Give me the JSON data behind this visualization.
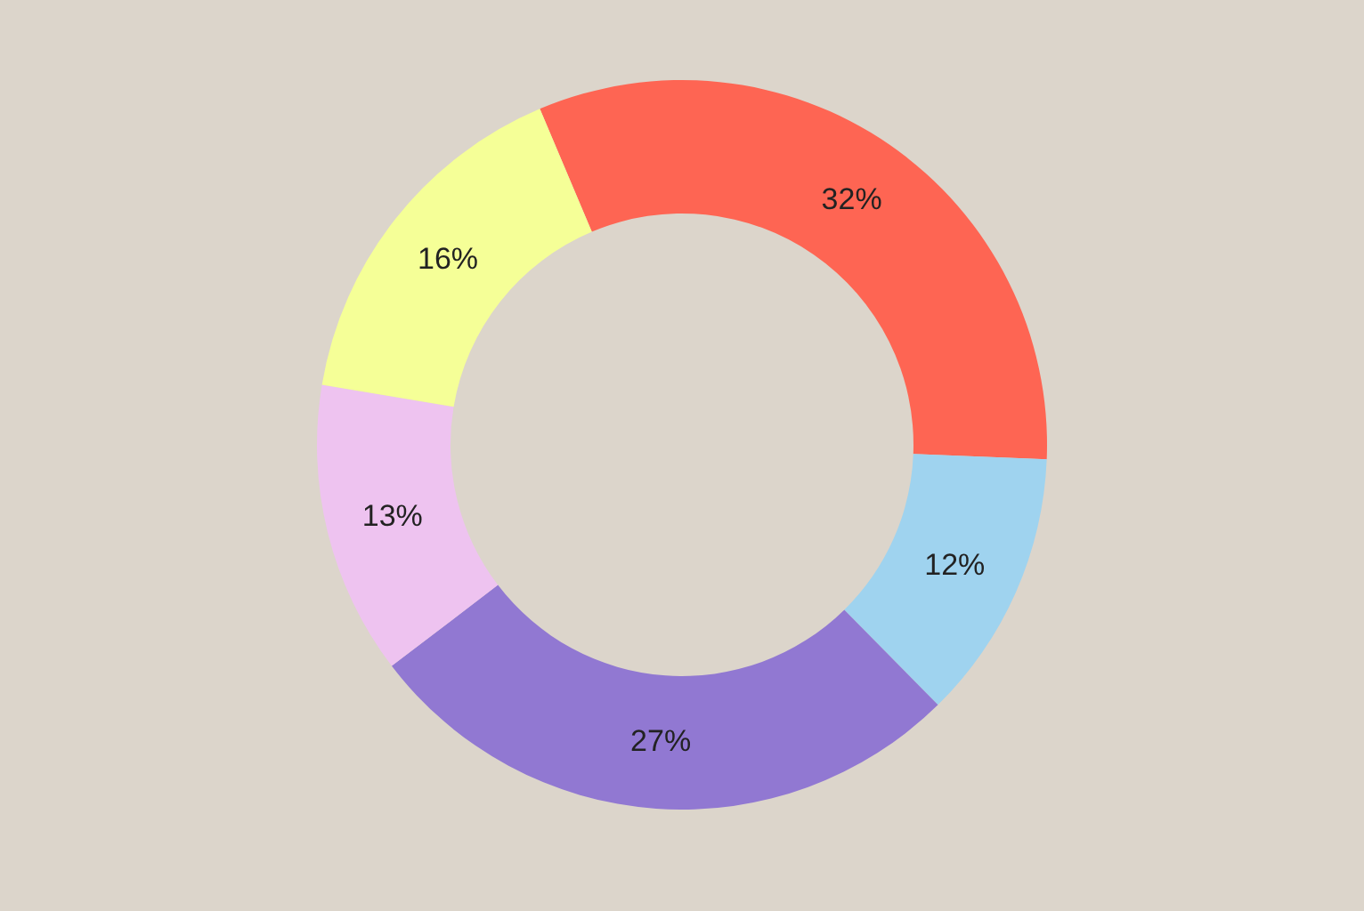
{
  "chart_data": {
    "type": "donut",
    "categories": [
      null,
      null,
      null,
      null,
      null
    ],
    "values": [
      32,
      12,
      27,
      13,
      16
    ],
    "colors": [
      "#fe6553",
      "#9fd3ef",
      "#9178d2",
      "#eec3f0",
      "#f5ff97"
    ],
    "value_labels": [
      "32%",
      "12%",
      "27%",
      "13%",
      "16%"
    ]
  }
}
